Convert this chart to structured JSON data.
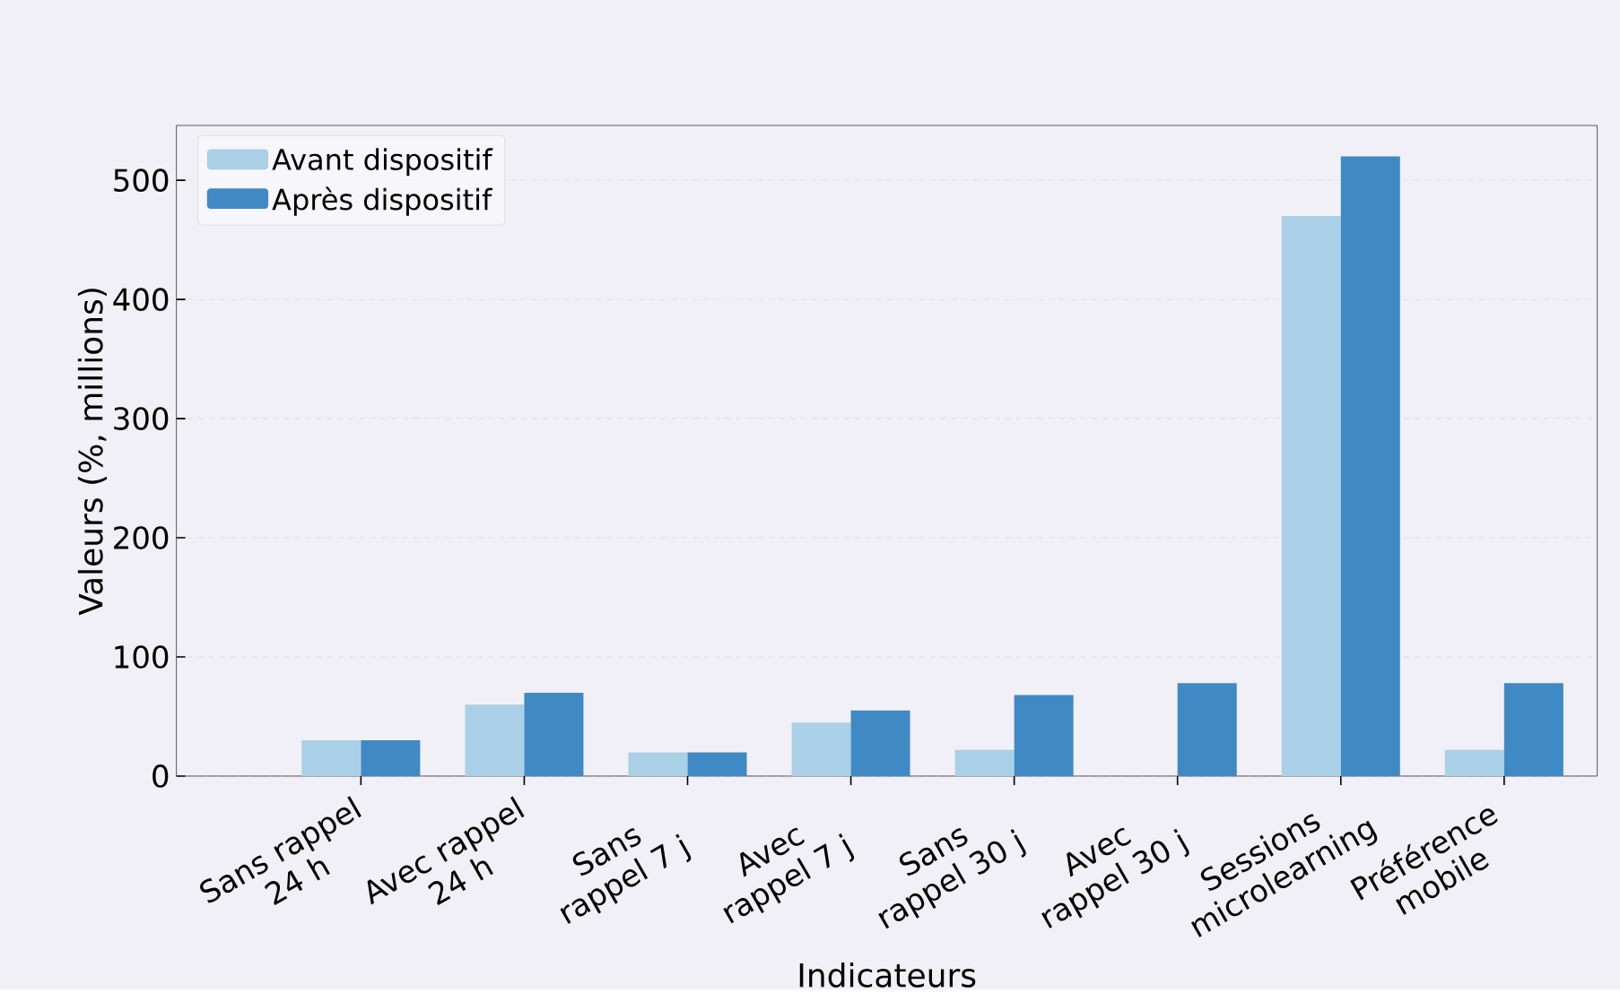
{
  "chart_data": {
    "type": "bar",
    "xlabel": "Indicateurs",
    "ylabel": "Valeurs (%, millions)",
    "categories": [
      "Sans rappel 24 h",
      "Avec rappel 24 h",
      "Sans rappel 7 j",
      "Avec rappel 7 j",
      "Sans rappel 30 j",
      "Avec rappel 30 j",
      "Sessions microlearning",
      "Préférence mobile"
    ],
    "series": [
      {
        "name": "Avant dispositif",
        "color": "#a9d0e6",
        "values": [
          30,
          60,
          20,
          45,
          22,
          null,
          470,
          22
        ]
      },
      {
        "name": "Après dispositif",
        "color": "#3f8ac4",
        "values": [
          30,
          70,
          20,
          55,
          68,
          78,
          520,
          78
        ]
      }
    ],
    "ylim": [
      0,
      546
    ],
    "yticks": [
      0,
      100,
      200,
      300,
      400,
      500
    ],
    "grid": "y",
    "legend": "top left"
  }
}
